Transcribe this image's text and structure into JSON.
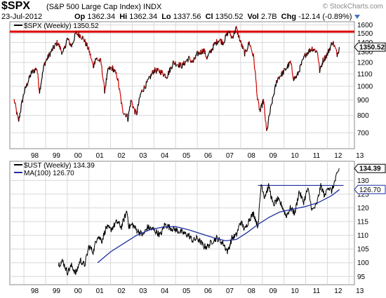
{
  "header": {
    "symbol": "$SPX",
    "name": "(S&P 500 Large Cap Index)",
    "exchange": "INDX",
    "watermark": "© StockCharts.com",
    "date": "23-Jul-2012",
    "open_label": "Op",
    "open": "1362.34",
    "high_label": "Hi",
    "high": "1362.34",
    "low_label": "Lo",
    "low": "1337.56",
    "close_label": "Cl",
    "close": "1350.52",
    "vol_label": "Vol",
    "vol": "2.7B",
    "chg_label": "Chg",
    "chg": "-12.14 (-0.89%)"
  },
  "colors": {
    "frame": "#8a8a8a",
    "grid": "#d8d8d8",
    "spx_up": "#000000",
    "spx_down": "#cc0000",
    "resistance": "#e00000",
    "ust": "#000000",
    "ma": "#1f2fa0",
    "hline": "#1f2fa0",
    "label_fill": "#ffffff"
  },
  "chart_data": [
    {
      "type": "line",
      "legend": "$SPX (Weekly) 1350.52",
      "ylim": [
        620,
        1640
      ],
      "log_scale": true,
      "yticks": [
        700,
        800,
        900,
        1000,
        1100,
        1200,
        1300,
        1400,
        1500,
        1600
      ],
      "xticks": [
        "98",
        "99",
        "00",
        "01",
        "02",
        "03",
        "04",
        "05",
        "06",
        "07",
        "08",
        "09",
        "10",
        "11",
        "12",
        "13"
      ],
      "last_value_label": "1350.52",
      "resistance_level": 1520,
      "grid": true,
      "anchors": [
        [
          1997.55,
          900
        ],
        [
          1997.75,
          760
        ],
        [
          1998.0,
          950
        ],
        [
          1998.35,
          1110
        ],
        [
          1998.6,
          1150
        ],
        [
          1998.72,
          960
        ],
        [
          1998.95,
          1190
        ],
        [
          1999.3,
          1320
        ],
        [
          1999.55,
          1400
        ],
        [
          1999.8,
          1280
        ],
        [
          2000.0,
          1440
        ],
        [
          2000.2,
          1360
        ],
        [
          2000.4,
          1500
        ],
        [
          2000.6,
          1480
        ],
        [
          2000.75,
          1440
        ],
        [
          2001.0,
          1320
        ],
        [
          2001.2,
          1160
        ],
        [
          2001.3,
          1240
        ],
        [
          2001.55,
          1210
        ],
        [
          2001.72,
          965
        ],
        [
          2001.9,
          1140
        ],
        [
          2002.1,
          1150
        ],
        [
          2002.3,
          1080
        ],
        [
          2002.55,
          830
        ],
        [
          2002.75,
          800
        ],
        [
          2002.8,
          780
        ],
        [
          2002.95,
          900
        ],
        [
          2003.1,
          830
        ],
        [
          2003.2,
          810
        ],
        [
          2003.4,
          950
        ],
        [
          2003.7,
          1030
        ],
        [
          2004.0,
          1130
        ],
        [
          2004.3,
          1120
        ],
        [
          2004.6,
          1080
        ],
        [
          2004.9,
          1200
        ],
        [
          2005.3,
          1170
        ],
        [
          2005.6,
          1240
        ],
        [
          2005.8,
          1200
        ],
        [
          2006.0,
          1280
        ],
        [
          2006.3,
          1320
        ],
        [
          2006.45,
          1240
        ],
        [
          2006.8,
          1380
        ],
        [
          2007.0,
          1430
        ],
        [
          2007.2,
          1400
        ],
        [
          2007.45,
          1530
        ],
        [
          2007.6,
          1450
        ],
        [
          2007.8,
          1560
        ],
        [
          2008.0,
          1400
        ],
        [
          2008.2,
          1280
        ],
        [
          2008.4,
          1400
        ],
        [
          2008.6,
          1250
        ],
        [
          2008.78,
          900
        ],
        [
          2008.9,
          820
        ],
        [
          2009.05,
          900
        ],
        [
          2009.2,
          700
        ],
        [
          2009.3,
          780
        ],
        [
          2009.5,
          920
        ],
        [
          2009.7,
          1060
        ],
        [
          2010.0,
          1120
        ],
        [
          2010.3,
          1200
        ],
        [
          2010.45,
          1060
        ],
        [
          2010.6,
          1080
        ],
        [
          2010.8,
          1180
        ],
        [
          2011.0,
          1280
        ],
        [
          2011.3,
          1340
        ],
        [
          2011.55,
          1300
        ],
        [
          2011.65,
          1120
        ],
        [
          2011.8,
          1220
        ],
        [
          2012.0,
          1280
        ],
        [
          2012.25,
          1410
        ],
        [
          2012.45,
          1280
        ],
        [
          2012.56,
          1350
        ]
      ]
    },
    {
      "type": "line",
      "legend": "$UST (Weekly) 134.39",
      "ma_legend": "MA(100) 126.70",
      "ylim": [
        92,
        137
      ],
      "yticks": [
        95,
        100,
        105,
        110,
        115,
        120,
        125,
        130
      ],
      "xticks": [
        "98",
        "99",
        "00",
        "01",
        "02",
        "03",
        "04",
        "05",
        "06",
        "07",
        "08",
        "09",
        "10",
        "11",
        "12",
        "13"
      ],
      "last_value_label": "134.39",
      "ma_last_label": "126.70",
      "horizontal_level": 128.2,
      "grid": true,
      "anchors": [
        [
          1999.6,
          99.5
        ],
        [
          1999.8,
          100.5
        ],
        [
          2000.0,
          96.5
        ],
        [
          2000.2,
          99
        ],
        [
          2000.4,
          96
        ],
        [
          2000.6,
          101
        ],
        [
          2000.8,
          99
        ],
        [
          2001.0,
          106
        ],
        [
          2001.2,
          104
        ],
        [
          2001.4,
          110
        ],
        [
          2001.6,
          108
        ],
        [
          2001.8,
          113
        ],
        [
          2002.0,
          112
        ],
        [
          2002.3,
          115
        ],
        [
          2002.5,
          113
        ],
        [
          2002.75,
          119
        ],
        [
          2002.85,
          113
        ],
        [
          2003.0,
          114
        ],
        [
          2003.2,
          112
        ],
        [
          2003.5,
          110
        ],
        [
          2003.7,
          113
        ],
        [
          2004.0,
          112
        ],
        [
          2004.3,
          110
        ],
        [
          2004.5,
          114
        ],
        [
          2004.7,
          113
        ],
        [
          2005.0,
          112
        ],
        [
          2005.3,
          111
        ],
        [
          2005.6,
          110
        ],
        [
          2005.8,
          108
        ],
        [
          2006.0,
          109
        ],
        [
          2006.3,
          106
        ],
        [
          2006.5,
          106
        ],
        [
          2006.7,
          108
        ],
        [
          2006.9,
          109
        ],
        [
          2007.2,
          107
        ],
        [
          2007.4,
          104
        ],
        [
          2007.6,
          109
        ],
        [
          2007.8,
          110
        ],
        [
          2008.0,
          115
        ],
        [
          2008.2,
          112
        ],
        [
          2008.4,
          116
        ],
        [
          2008.6,
          118
        ],
        [
          2008.8,
          113
        ],
        [
          2008.95,
          129
        ],
        [
          2009.1,
          124
        ],
        [
          2009.3,
          128
        ],
        [
          2009.5,
          121
        ],
        [
          2009.7,
          123
        ],
        [
          2009.9,
          121
        ],
        [
          2010.1,
          117
        ],
        [
          2010.3,
          120
        ],
        [
          2010.5,
          118
        ],
        [
          2010.7,
          126
        ],
        [
          2010.9,
          122
        ],
        [
          2011.1,
          127
        ],
        [
          2011.3,
          119
        ],
        [
          2011.5,
          121
        ],
        [
          2011.7,
          128
        ],
        [
          2011.9,
          124
        ],
        [
          2012.0,
          128
        ],
        [
          2012.2,
          126
        ],
        [
          2012.4,
          131
        ],
        [
          2012.56,
          134.5
        ]
      ],
      "ma_anchors": [
        [
          2001.4,
          100
        ],
        [
          2002.0,
          104
        ],
        [
          2002.6,
          107
        ],
        [
          2003.2,
          110
        ],
        [
          2003.8,
          112
        ],
        [
          2004.4,
          113
        ],
        [
          2005.0,
          113.2
        ],
        [
          2005.6,
          112
        ],
        [
          2006.2,
          110.5
        ],
        [
          2006.8,
          109
        ],
        [
          2007.3,
          108
        ],
        [
          2007.8,
          108.5
        ],
        [
          2008.3,
          111
        ],
        [
          2008.8,
          114
        ],
        [
          2009.3,
          116.5
        ],
        [
          2009.8,
          118.5
        ],
        [
          2010.4,
          119.5
        ],
        [
          2011.0,
          120.5
        ],
        [
          2011.6,
          122
        ],
        [
          2012.2,
          124.5
        ],
        [
          2012.56,
          126.7
        ]
      ]
    }
  ]
}
